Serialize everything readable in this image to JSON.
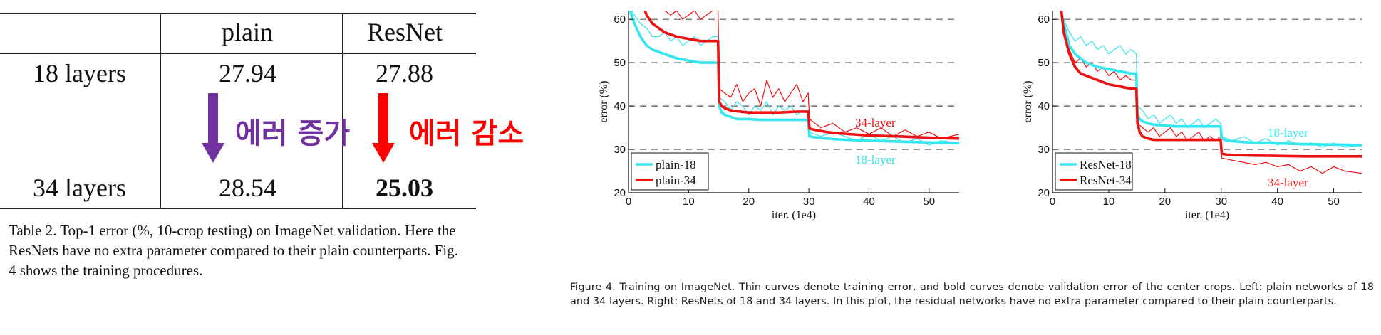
{
  "table": {
    "col_headers": [
      "",
      "plain",
      "ResNet"
    ],
    "rows": [
      {
        "label": "18 layers",
        "plain": "27.94",
        "resnet": "27.88"
      },
      {
        "label": "34 layers",
        "plain": "28.54",
        "resnet": "25.03"
      }
    ],
    "annotation_plain": "에러 증가",
    "annotation_resnet": "에러 감소",
    "annotation_colors": {
      "plain": "#7030a0",
      "resnet": "#ff0000"
    },
    "caption": "Table 2. Top-1 error (%, 10-crop testing) on ImageNet validation. Here the ResNets have no extra parameter compared to their plain counterparts. Fig. 4 shows the training procedures."
  },
  "colors": {
    "cyan": "#33e6ef",
    "red": "#ee1111"
  },
  "chart_data": [
    {
      "type": "line",
      "xlabel": "iter. (1e4)",
      "ylabel": "error (%)",
      "xlim": [
        0,
        55
      ],
      "ylim": [
        20,
        62
      ],
      "xticks": [
        "0",
        "10",
        "20",
        "30",
        "40",
        "50"
      ],
      "yticks": [
        "20",
        "30",
        "40",
        "50",
        "60"
      ],
      "grid": "dashed horizontal",
      "legend": "bottom-left",
      "legend_entries": [
        "plain-18",
        "plain-34"
      ],
      "labels": {
        "top": "34-layer",
        "bottom": "18-layer"
      },
      "series": [
        {
          "name": "plain-18",
          "color": "cyan",
          "style": "bold",
          "x": [
            0,
            1,
            2,
            3,
            4,
            5,
            6,
            8,
            10,
            12,
            14,
            14.9,
            15.1,
            15.5,
            16,
            17,
            18,
            20,
            22,
            25,
            28,
            29.9,
            30.1,
            31,
            33,
            35,
            40,
            45,
            50,
            55
          ],
          "y": [
            63,
            59,
            56,
            54,
            53,
            52.5,
            52,
            51,
            50.5,
            50,
            50,
            50,
            40,
            38.5,
            38,
            37.5,
            37,
            37,
            36.8,
            36.8,
            36.8,
            36.8,
            33,
            32.8,
            32.5,
            32.3,
            32,
            31.8,
            31.6,
            31.4
          ]
        },
        {
          "name": "plain-34",
          "color": "red",
          "style": "bold",
          "x": [
            2.5,
            3,
            4,
            5,
            6,
            7,
            8,
            10,
            12,
            14,
            14.9,
            15.1,
            15.5,
            16,
            17,
            18,
            20,
            22,
            25,
            28,
            29.9,
            30.1,
            31,
            33,
            35,
            40,
            45,
            50,
            55
          ],
          "y": [
            63,
            61,
            59,
            58,
            57,
            56.5,
            56,
            55.5,
            55,
            55,
            55,
            41,
            40,
            39.5,
            39,
            38.8,
            38.5,
            38.5,
            38.5,
            38.7,
            38.7,
            34.8,
            34.5,
            34,
            33.7,
            33.2,
            33,
            32.7,
            32.5
          ]
        },
        {
          "name": "plain-18 (train)",
          "color": "cyan",
          "style": "thin",
          "x": [
            0,
            1,
            2,
            3,
            4,
            5,
            6,
            7,
            8,
            9,
            10,
            11,
            12,
            13,
            14,
            14.9,
            15.1,
            16,
            17,
            18,
            19,
            20,
            21,
            22,
            23,
            24,
            25,
            26,
            27,
            28,
            29,
            29.9,
            30.1,
            32,
            34,
            36,
            38,
            40,
            42,
            44,
            46,
            48,
            50,
            52,
            55
          ],
          "y": [
            63,
            61,
            59,
            58,
            56,
            56,
            57,
            55,
            56,
            54,
            55,
            56,
            54,
            55,
            56,
            56,
            42,
            41,
            39,
            41,
            40,
            38,
            40,
            39,
            41,
            38,
            40,
            39,
            40,
            38,
            39,
            39,
            34,
            33,
            34,
            33,
            32,
            33.5,
            32,
            33,
            31.5,
            32.5,
            31,
            32,
            31.5
          ]
        },
        {
          "name": "plain-34 (train)",
          "color": "red",
          "style": "thin",
          "x": [
            2.5,
            3,
            4,
            5,
            6,
            7,
            8,
            9,
            10,
            11,
            12,
            13,
            14,
            14.9,
            15.1,
            16,
            17,
            18,
            19,
            20,
            21,
            22,
            23,
            24,
            25,
            26,
            27,
            28,
            29,
            29.9,
            30.1,
            32,
            34,
            36,
            38,
            40,
            42,
            44,
            46,
            48,
            50,
            52,
            55
          ],
          "y": [
            63,
            63,
            62,
            63,
            62,
            61,
            62,
            60,
            61,
            62,
            60,
            61,
            62,
            62,
            44,
            43,
            42,
            45,
            41,
            43,
            44,
            40,
            46,
            42,
            44,
            41,
            43,
            45,
            41,
            43,
            37,
            35,
            36,
            34,
            35,
            33.5,
            35,
            33,
            34.5,
            33,
            34,
            32.5,
            33.5
          ]
        }
      ]
    },
    {
      "type": "line",
      "xlabel": "iter. (1e4)",
      "ylabel": "error (%)",
      "xlim": [
        0,
        55
      ],
      "ylim": [
        20,
        62
      ],
      "xticks": [
        "0",
        "10",
        "20",
        "30",
        "40",
        "50"
      ],
      "yticks": [
        "20",
        "30",
        "40",
        "50",
        "60"
      ],
      "grid": "dashed horizontal",
      "legend": "bottom-left",
      "legend_entries": [
        "ResNet-18",
        "ResNet-34"
      ],
      "labels": {
        "top": "18-layer",
        "bottom": "34-layer"
      },
      "series": [
        {
          "name": "ResNet-18",
          "color": "cyan",
          "style": "bold",
          "x": [
            1.3,
            2,
            3,
            4,
            5,
            6,
            8,
            10,
            12,
            14,
            14.9,
            15.1,
            15.5,
            16,
            17,
            18,
            20,
            22,
            25,
            28,
            29.9,
            30.1,
            31,
            33,
            35,
            40,
            45,
            50,
            55
          ],
          "y": [
            63,
            59,
            54,
            52,
            51,
            50,
            49,
            48.5,
            48,
            47.5,
            47.5,
            38,
            37,
            36.5,
            36,
            35.7,
            35.5,
            35.3,
            35.3,
            35.3,
            35.3,
            32.5,
            32,
            31.8,
            31.6,
            31.4,
            31.2,
            31.1,
            31
          ]
        },
        {
          "name": "ResNet-34",
          "color": "red",
          "style": "bold",
          "x": [
            1.5,
            2,
            3,
            4,
            5,
            6,
            8,
            10,
            12,
            14,
            14.9,
            15.1,
            15.5,
            16,
            17,
            18,
            20,
            22,
            25,
            28,
            29.9,
            30.1,
            31,
            33,
            35,
            40,
            45,
            50,
            55
          ],
          "y": [
            63,
            57,
            52,
            49,
            47.5,
            47,
            46,
            45,
            44.5,
            44,
            44,
            36,
            34,
            33,
            32.5,
            32.2,
            32.2,
            32.2,
            32.2,
            32.2,
            32.2,
            29,
            28.8,
            28.7,
            28.6,
            28.5,
            28.4,
            28.4,
            28.4
          ]
        },
        {
          "name": "ResNet-18 (train)",
          "color": "cyan",
          "style": "thin",
          "x": [
            1.3,
            2,
            3,
            4,
            5,
            6,
            7,
            8,
            9,
            10,
            11,
            12,
            13,
            14,
            14.9,
            15.1,
            16,
            17,
            18,
            19,
            20,
            21,
            22,
            23,
            24,
            25,
            26,
            27,
            28,
            29,
            29.9,
            30.1,
            32,
            34,
            36,
            38,
            40,
            42,
            44,
            46,
            48,
            50,
            52,
            55
          ],
          "y": [
            63,
            60,
            57,
            55,
            56,
            54,
            55,
            53,
            54,
            52,
            53,
            54,
            52,
            53,
            52,
            40,
            39,
            37,
            38,
            36,
            37,
            38,
            36,
            37,
            35,
            36,
            37,
            35,
            36,
            37,
            36,
            33,
            32,
            33,
            31.5,
            32.5,
            31,
            32,
            31,
            31.5,
            30.5,
            31.5,
            30.5,
            31
          ]
        },
        {
          "name": "ResNet-34 (train)",
          "color": "red",
          "style": "thin",
          "x": [
            1.5,
            2,
            3,
            4,
            5,
            6,
            7,
            8,
            9,
            10,
            11,
            12,
            13,
            14,
            14.9,
            15.1,
            16,
            17,
            18,
            19,
            20,
            21,
            22,
            23,
            24,
            25,
            26,
            27,
            28,
            29,
            29.9,
            30.1,
            32,
            34,
            36,
            38,
            40,
            42,
            44,
            46,
            48,
            50,
            52,
            55
          ],
          "y": [
            63,
            58,
            53,
            50,
            51,
            49,
            50,
            48,
            49,
            47,
            48,
            46,
            47,
            46,
            46,
            36,
            35,
            34,
            35,
            33,
            34,
            35,
            33,
            34,
            32,
            33,
            34,
            32,
            33,
            32,
            33,
            28,
            27.5,
            27,
            26.5,
            27,
            26,
            26.5,
            25,
            26,
            24.5,
            26,
            25,
            24.5
          ]
        }
      ]
    }
  ],
  "figure_caption": "Figure 4. Training on ImageNet. Thin curves denote training error, and bold curves denote validation error of the center crops. Left: plain networks of 18 and 34 layers. Right: ResNets of 18 and 34 layers. In this plot, the residual networks have no extra parameter compared to their plain counterparts."
}
